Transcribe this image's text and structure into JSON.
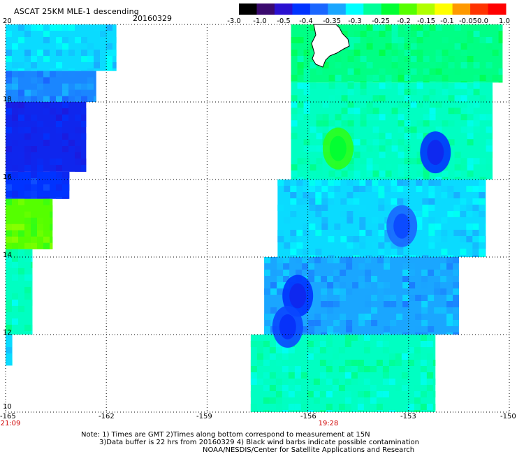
{
  "header": {
    "title": "ASCAT 25KM MLE-1 descending",
    "date": "20160329"
  },
  "colorbar": {
    "labels": [
      "-3.0",
      "-1.0",
      "-0.5",
      "-0.4",
      "-0.35",
      "-0.3",
      "-0.25",
      "-0.2",
      "-0.15",
      "-0.1",
      "-0.05",
      "0.0",
      "1.0"
    ],
    "colors": [
      "#000000",
      "#3a0a6e",
      "#2a10d0",
      "#0033ff",
      "#1a66ff",
      "#1aa6ff",
      "#00ffff",
      "#00ff99",
      "#00ff33",
      "#55ff00",
      "#b0ff00",
      "#ffff00",
      "#ff9900",
      "#ff3300",
      "#ff0000"
    ]
  },
  "axes": {
    "lon_labels": [
      "-165",
      "-162",
      "-159",
      "-156",
      "-153",
      "-150"
    ],
    "lat_labels": [
      "20",
      "18",
      "16",
      "14",
      "12",
      "10"
    ],
    "time_labels": [
      "21:09",
      "19:28"
    ]
  },
  "notes": {
    "line1": "Note: 1) Times are GMT 2)Times along bottom correspond to measurement at 15N",
    "line2": "3)Data buffer is 22 hrs from 20160329 4) Black wind barbs indicate possible contamination",
    "line3": "NOAA/NESDIS/Center for Satellite Applications and Research"
  },
  "map_data": {
    "lon_range": [
      -165,
      -150
    ],
    "lat_range": [
      10,
      20
    ],
    "swaths": [
      {
        "name": "west-swath",
        "time": "21:09",
        "regions": [
          {
            "lat": [
              18.8,
              20
            ],
            "lon_w": -165,
            "lon_e": -161.7,
            "value": -0.3
          },
          {
            "lat": [
              18.0,
              18.8
            ],
            "lon_w": -165,
            "lon_e": -162.3,
            "value": -0.35
          },
          {
            "lat": [
              16.2,
              18.0
            ],
            "lon_w": -165,
            "lon_e": -162.6,
            "value": -0.45
          },
          {
            "lat": [
              15.5,
              16.2
            ],
            "lon_w": -165,
            "lon_e": -163.1,
            "value": -0.42
          },
          {
            "lat": [
              14.2,
              15.5
            ],
            "lon_w": -165,
            "lon_e": -163.6,
            "value": -0.12
          },
          {
            "lat": [
              12.0,
              14.2
            ],
            "lon_w": -165,
            "lon_e": -164.2,
            "value": -0.25
          },
          {
            "lat": [
              11.2,
              12.0
            ],
            "lon_w": -165,
            "lon_e": -164.8,
            "value": -0.3
          }
        ]
      },
      {
        "name": "east-swath",
        "time": "19:28",
        "regions": [
          {
            "lat": [
              18.5,
              20
            ],
            "lon_w": -156.5,
            "lon_e": -150.2,
            "value": -0.22
          },
          {
            "lat": [
              16.0,
              18.5
            ],
            "lon_w": -156.5,
            "lon_e": -150.5,
            "value": -0.25
          },
          {
            "lat": [
              14.0,
              16.0
            ],
            "lon_w": -156.9,
            "lon_e": -150.7,
            "value": -0.3
          },
          {
            "lat": [
              12.0,
              14.0
            ],
            "lon_w": -157.3,
            "lon_e": -151.5,
            "value": -0.33
          },
          {
            "lat": [
              10.0,
              12.0
            ],
            "lon_w": -157.7,
            "lon_e": -152.2,
            "value": -0.25
          }
        ],
        "features": [
          {
            "lat": 16.8,
            "lon": -155.1,
            "value": -0.15
          },
          {
            "lat": 16.7,
            "lon": -152.2,
            "value": -0.42
          },
          {
            "lat": 13.0,
            "lon": -156.3,
            "value": -0.42
          },
          {
            "lat": 12.2,
            "lon": -156.6,
            "value": -0.4
          },
          {
            "lat": 14.8,
            "lon": -153.2,
            "value": -0.37
          }
        ]
      }
    ]
  }
}
